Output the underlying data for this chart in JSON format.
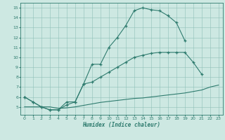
{
  "xlabel": "Humidex (Indice chaleur)",
  "xlim": [
    -0.5,
    23.5
  ],
  "ylim": [
    4.2,
    15.5
  ],
  "yticks": [
    5,
    6,
    7,
    8,
    9,
    10,
    11,
    12,
    13,
    14,
    15
  ],
  "xticks": [
    0,
    1,
    2,
    3,
    4,
    5,
    6,
    7,
    8,
    9,
    10,
    11,
    12,
    13,
    14,
    15,
    16,
    17,
    18,
    19,
    20,
    21,
    22,
    23
  ],
  "bg_color": "#cde8e2",
  "line_color": "#2e7b6e",
  "line1_x": [
    0,
    1,
    2,
    3,
    4,
    5,
    6,
    7,
    8,
    9,
    10,
    11,
    12,
    13,
    14,
    15,
    16,
    17,
    18,
    19
  ],
  "line1_y": [
    6.0,
    5.5,
    5.0,
    4.7,
    4.7,
    5.2,
    5.5,
    7.3,
    9.3,
    9.3,
    11.0,
    12.0,
    13.2,
    14.7,
    15.0,
    14.8,
    14.7,
    14.2,
    13.5,
    11.7
  ],
  "line2_x": [
    0,
    1,
    2,
    3,
    4,
    5,
    6,
    7,
    8,
    9,
    10,
    11,
    12,
    13,
    14,
    15,
    16,
    17,
    18,
    19,
    20,
    21
  ],
  "line2_y": [
    6.0,
    5.5,
    5.0,
    4.7,
    4.7,
    5.5,
    5.5,
    7.3,
    7.5,
    8.0,
    8.5,
    9.0,
    9.5,
    10.0,
    10.2,
    10.4,
    10.5,
    10.5,
    10.5,
    10.5,
    9.5,
    8.3
  ],
  "line3_x": [
    0,
    1,
    2,
    3,
    4,
    5,
    6,
    7,
    8,
    9,
    10,
    11,
    12,
    13,
    14,
    15,
    16,
    17,
    18,
    19,
    20,
    21,
    22,
    23
  ],
  "line3_y": [
    5.0,
    5.0,
    5.0,
    5.0,
    4.85,
    4.9,
    5.0,
    5.15,
    5.3,
    5.45,
    5.55,
    5.65,
    5.75,
    5.85,
    5.9,
    6.0,
    6.1,
    6.2,
    6.3,
    6.4,
    6.55,
    6.7,
    7.0,
    7.2
  ]
}
